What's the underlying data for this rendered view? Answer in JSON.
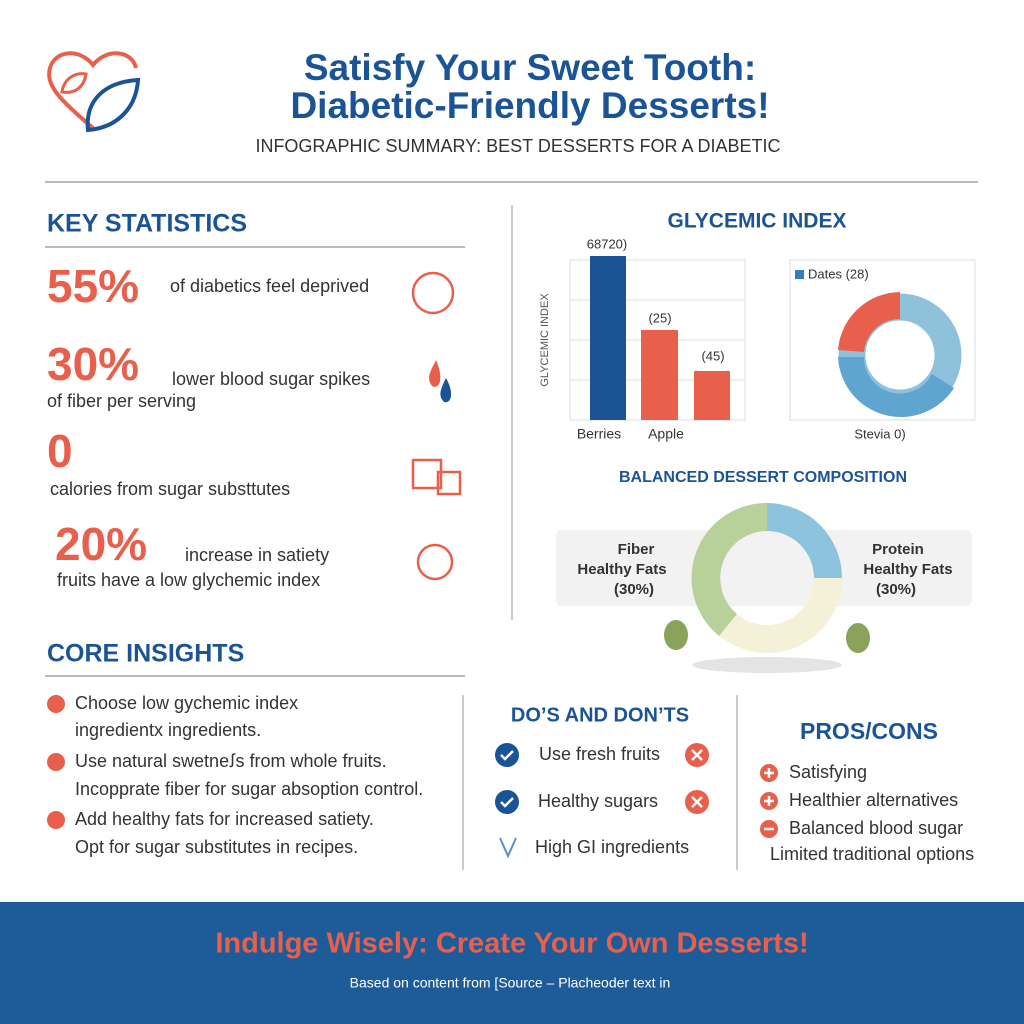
{
  "header": {
    "title_line1": "Satisfy Your Sweet Tooth:",
    "title_line2": "Diabetic-Friendly Desserts!",
    "subtitle": "INFOGRAPHIC SUMMARY: BEST DESSERTS FOR A DIABETIC"
  },
  "key_statistics": {
    "heading": "KEY STATISTICS",
    "items": [
      {
        "number": "55%",
        "text": "of diabetics feel deprived"
      },
      {
        "number": "30%",
        "text": "lower blood sugar spikes",
        "text2": "of fiber per serving"
      },
      {
        "number": "0",
        "text": "calories from sugar substtutes"
      },
      {
        "number": "20%",
        "text": "increase in satiety",
        "text2": "fruits have a low glychemic index"
      }
    ]
  },
  "glycemic_index": {
    "heading": "GLYCEMIC INDEX",
    "axis_label": "GLYCEMIC INDEX",
    "bar_labels": [
      "68720)",
      "(25)",
      "(45)"
    ],
    "categories": [
      "Berries",
      "Apple"
    ],
    "donut_legend": "Dates (28)",
    "donut_label": "Stevia 0)"
  },
  "composition": {
    "heading": "BALANCED DESSERT COMPOSITION",
    "left": [
      "Fiber",
      "Healthy Fats",
      "(30%)"
    ],
    "right": [
      "Protein",
      "Healthy Fats",
      "(30%)"
    ]
  },
  "core_insights": {
    "heading": "CORE INSIGHTS",
    "lines": [
      "Choose low gychemic index",
      "ingredientx ingredients.",
      "Use natural swetneꭍs from whole fruits.",
      "Incopprate fiber for sugar absoption control.",
      "Add healthy fats for increased satiety.",
      "Opt for sugar substitutes in recipes."
    ]
  },
  "dos_donts": {
    "heading": "DO’S AND DON’TS",
    "items": [
      "Use fresh fruits",
      "Healthy sugars",
      "High GI ingredients"
    ]
  },
  "pros_cons": {
    "heading": "PROS/CONS",
    "items": [
      "Satisfying",
      "Healthier alternatives",
      "Balanced blood sugar",
      "Limited traditional options"
    ]
  },
  "footer": {
    "title": "Indulge Wisely: Create Your Own Desserts!",
    "source": "Based on content from [Source – Placheoder text in"
  }
}
